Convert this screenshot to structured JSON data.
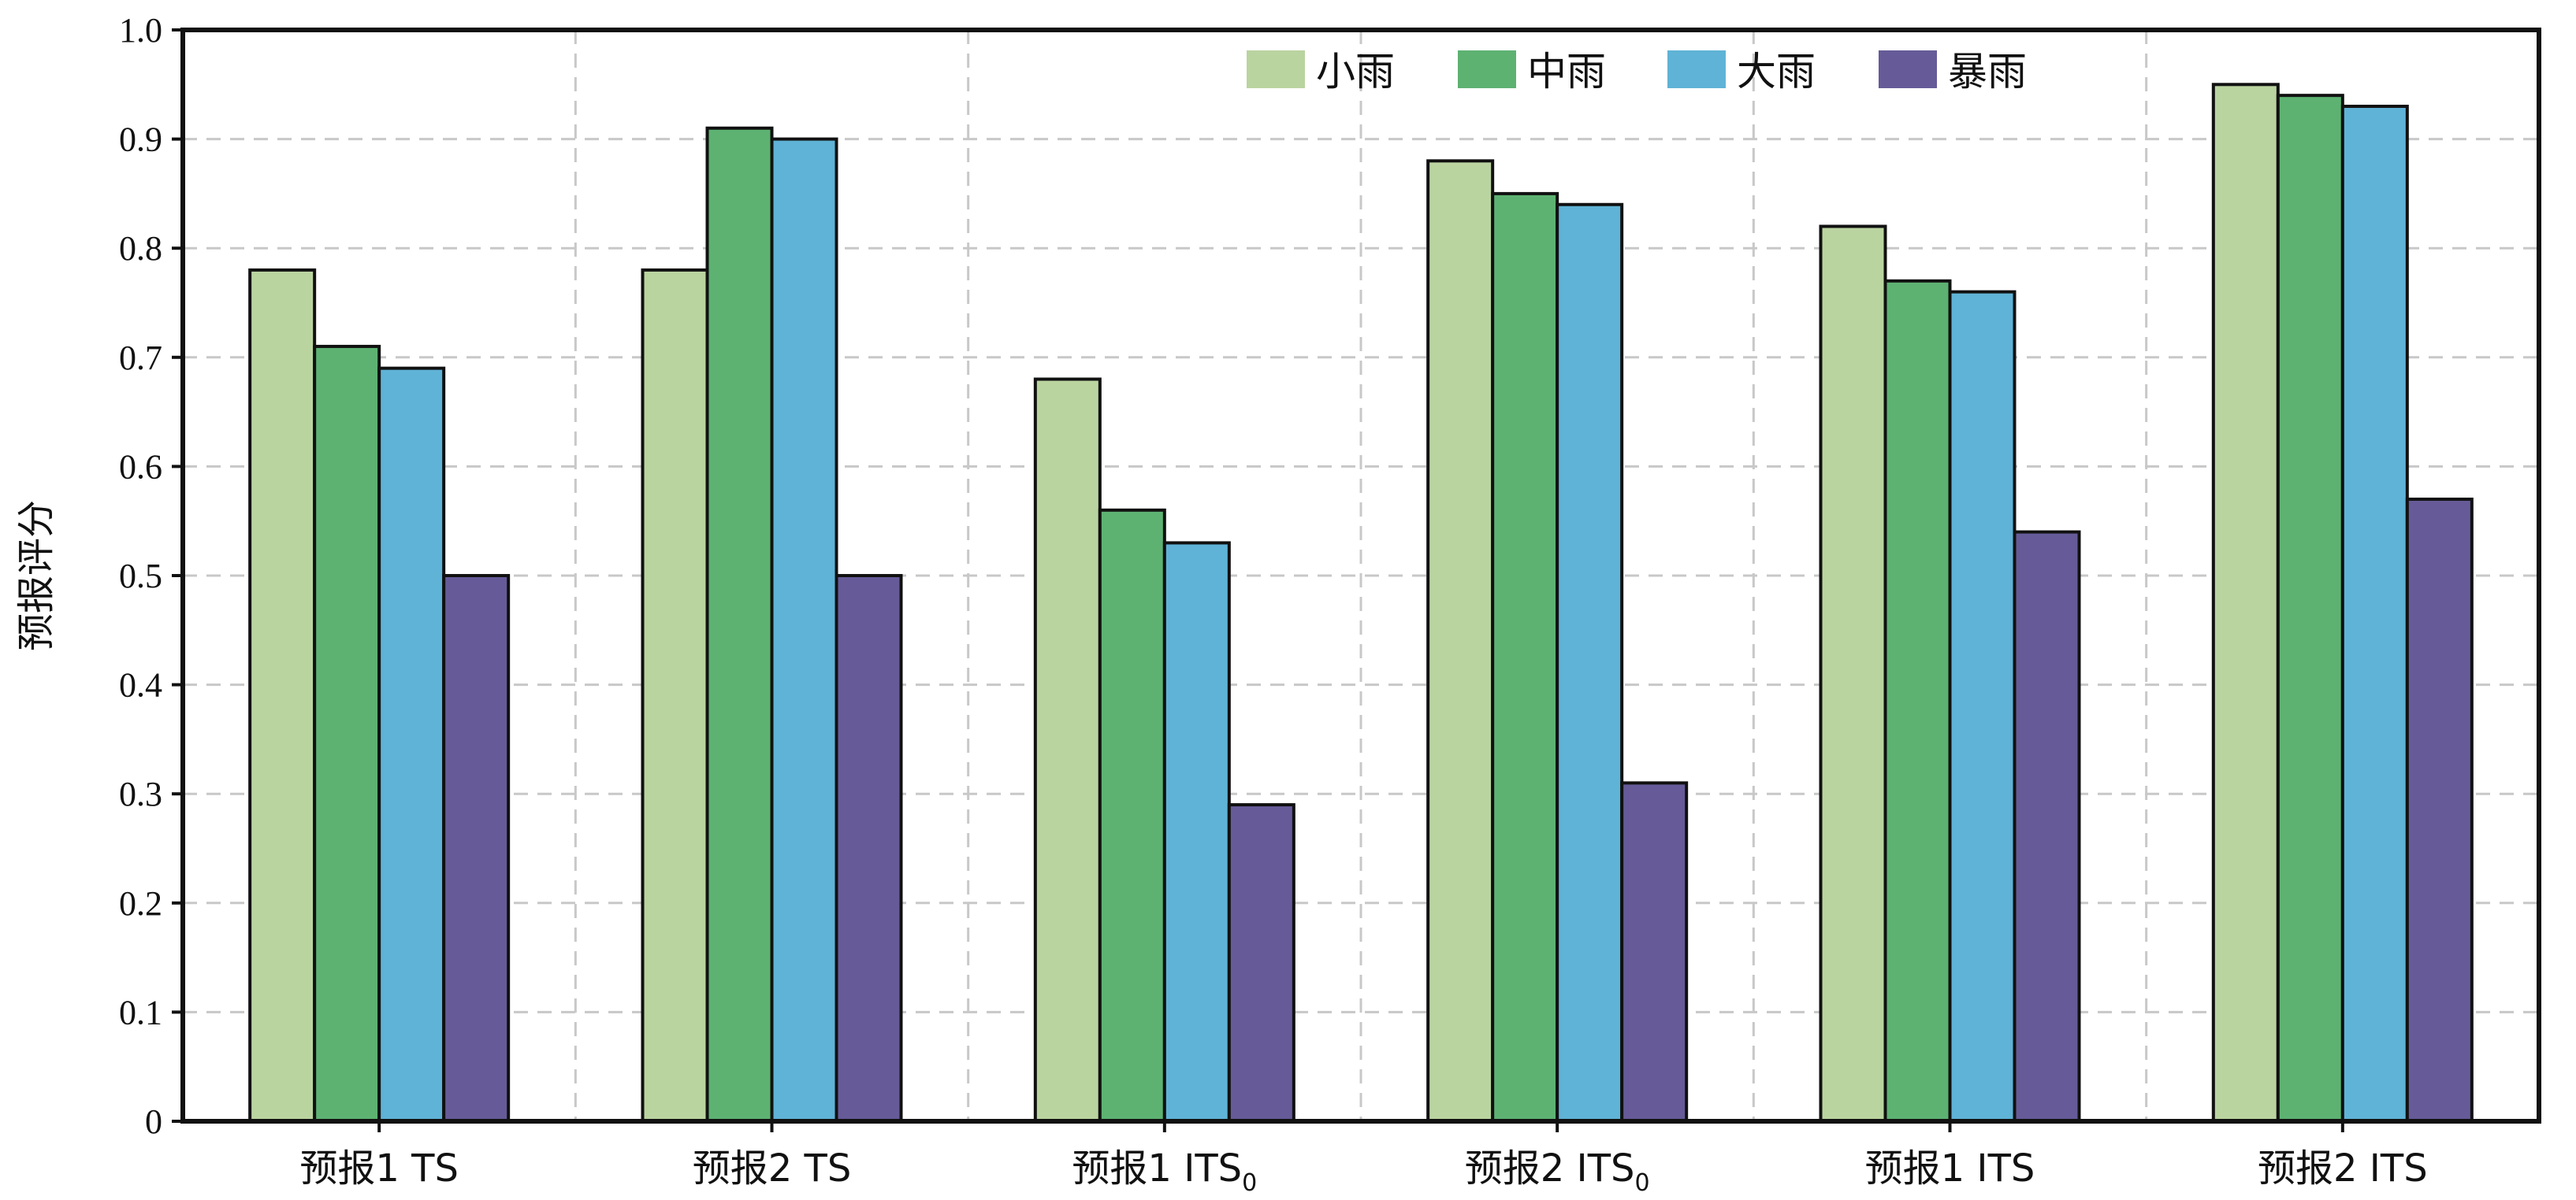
{
  "chart_data": {
    "type": "bar",
    "ylabel": "预报评分",
    "xlabel": "",
    "ylim": [
      0,
      1.0
    ],
    "yticks": [
      "0",
      "0.1",
      "0.2",
      "0.3",
      "0.4",
      "0.5",
      "0.6",
      "0.7",
      "0.8",
      "0.9",
      "1.0"
    ],
    "grid": true,
    "legend_position": "top-right",
    "categories": [
      {
        "label": "预报1 TS",
        "subscript": ""
      },
      {
        "label": "预报2 TS",
        "subscript": ""
      },
      {
        "label": "预报1 ITS",
        "subscript": "0"
      },
      {
        "label": "预报2 ITS",
        "subscript": "0"
      },
      {
        "label": "预报1 ITS",
        "subscript": ""
      },
      {
        "label": "预报2 ITS",
        "subscript": ""
      }
    ],
    "series": [
      {
        "name": "小雨",
        "color": "#bad4a0",
        "values": [
          0.78,
          0.78,
          0.68,
          0.88,
          0.82,
          0.95
        ]
      },
      {
        "name": "中雨",
        "color": "#5db272",
        "values": [
          0.71,
          0.91,
          0.56,
          0.85,
          0.77,
          0.94
        ]
      },
      {
        "name": "大雨",
        "color": "#5fb3d6",
        "values": [
          0.69,
          0.9,
          0.53,
          0.84,
          0.76,
          0.93
        ]
      },
      {
        "name": "暴雨",
        "color": "#665b98",
        "values": [
          0.5,
          0.5,
          0.29,
          0.31,
          0.54,
          0.57
        ]
      }
    ]
  }
}
